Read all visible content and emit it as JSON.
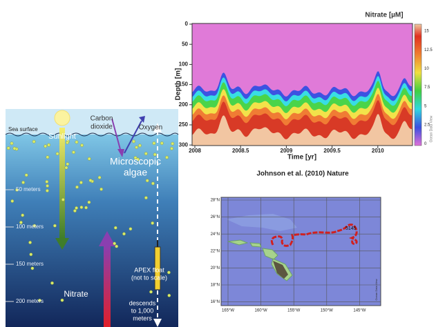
{
  "diagram": {
    "sunlight": "Sunlight",
    "carbon_dioxide": [
      "Carbon",
      "dioxide"
    ],
    "oxygen": "Oxygen",
    "sea_surface": "Sea surface",
    "algae": [
      "Microscopic",
      "algae"
    ],
    "depths": [
      "50 meters",
      "100 meters",
      "150 meters",
      "200 meters"
    ],
    "nitrate": "Nitrate",
    "float": [
      "APEX float",
      "(not to scale)"
    ],
    "descends": [
      "descends",
      "to 1,000",
      "meters"
    ]
  },
  "nitrate_chart": {
    "title": "Nitrate [µM]",
    "y_label": "Depth [m]",
    "x_label": "Time [yr]",
    "y_ticks": [
      "0",
      "50",
      "100",
      "150",
      "200",
      "250",
      "300"
    ],
    "x_ticks": [
      "2008",
      "2008.5",
      "2009",
      "2009.5",
      "2010"
    ],
    "colorbar_ticks": [
      "15",
      "12.5",
      "10",
      "7.5",
      "5",
      "2.5",
      "0"
    ],
    "watermark": "Ocean Data View"
  },
  "citation": "Johnson et al. (2010) Nature",
  "map": {
    "lat_labels": [
      "28°N",
      "26°N",
      "24°N",
      "22°N",
      "20°N",
      "18°N",
      "16°N"
    ],
    "lon_labels": [
      "165°W",
      "160°W",
      "155°W",
      "150°W",
      "145°W"
    ],
    "float_id": "5145",
    "watermark": "Ocean Data View"
  }
}
